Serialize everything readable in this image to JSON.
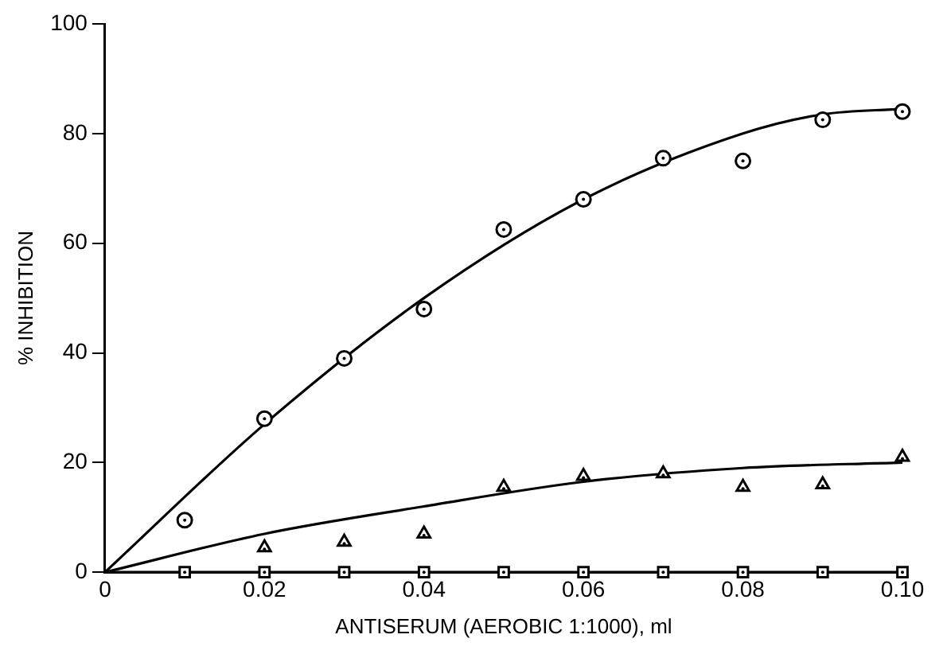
{
  "chart_data": {
    "type": "scatter",
    "xlabel": "ANTISERUM (AEROBIC 1:1000), ml",
    "ylabel": "% INHIBITION",
    "xlim": [
      0,
      0.1
    ],
    "ylim": [
      0,
      100
    ],
    "xticks": [
      0,
      0.02,
      0.04,
      0.06,
      0.08,
      {
        "value": 0.1,
        "label": "0.10"
      }
    ],
    "yticks": [
      0,
      20,
      40,
      60,
      80,
      100
    ],
    "grid": false,
    "legend": false,
    "series": [
      {
        "type": "scatter",
        "marker": "circle",
        "color": "#000000",
        "x": [
          0.01,
          0.02,
          0.03,
          0.04,
          0.05,
          0.06,
          0.07,
          0.08,
          0.09,
          0.1
        ],
        "values": [
          9.5,
          28,
          39,
          48,
          62.5,
          68,
          75.5,
          75,
          82.5,
          84
        ]
      },
      {
        "type": "scatter",
        "marker": "triangle",
        "color": "#000000",
        "x": [
          0.02,
          0.03,
          0.04,
          0.05,
          0.06,
          0.07,
          0.08,
          0.09,
          0.1
        ],
        "values": [
          4.5,
          5.5,
          7,
          15.5,
          17.5,
          18,
          15.5,
          16,
          21
        ]
      },
      {
        "type": "scatter",
        "marker": "square",
        "color": "#000000",
        "x": [
          0.01,
          0.02,
          0.03,
          0.04,
          0.05,
          0.06,
          0.07,
          0.08,
          0.09,
          0.1
        ],
        "values": [
          0,
          0,
          0,
          0,
          0,
          0,
          0,
          0,
          0,
          0
        ]
      },
      {
        "type": "line",
        "marker": "none",
        "line_style": "solid",
        "color": "#000000",
        "x": [
          0,
          0.02,
          0.04,
          0.06,
          0.08,
          0.09,
          0.1
        ],
        "values": [
          0,
          27,
          50,
          68,
          80,
          83.5,
          84.5
        ]
      },
      {
        "type": "line",
        "marker": "none",
        "line_style": "solid",
        "color": "#000000",
        "x": [
          0,
          0.02,
          0.04,
          0.06,
          0.08,
          0.1
        ],
        "values": [
          0,
          7,
          12,
          16.5,
          19,
          20
        ]
      },
      {
        "type": "line",
        "marker": "none",
        "line_style": "solid",
        "color": "#000000",
        "x": [
          0,
          0.1
        ],
        "values": [
          0,
          0
        ]
      }
    ]
  }
}
